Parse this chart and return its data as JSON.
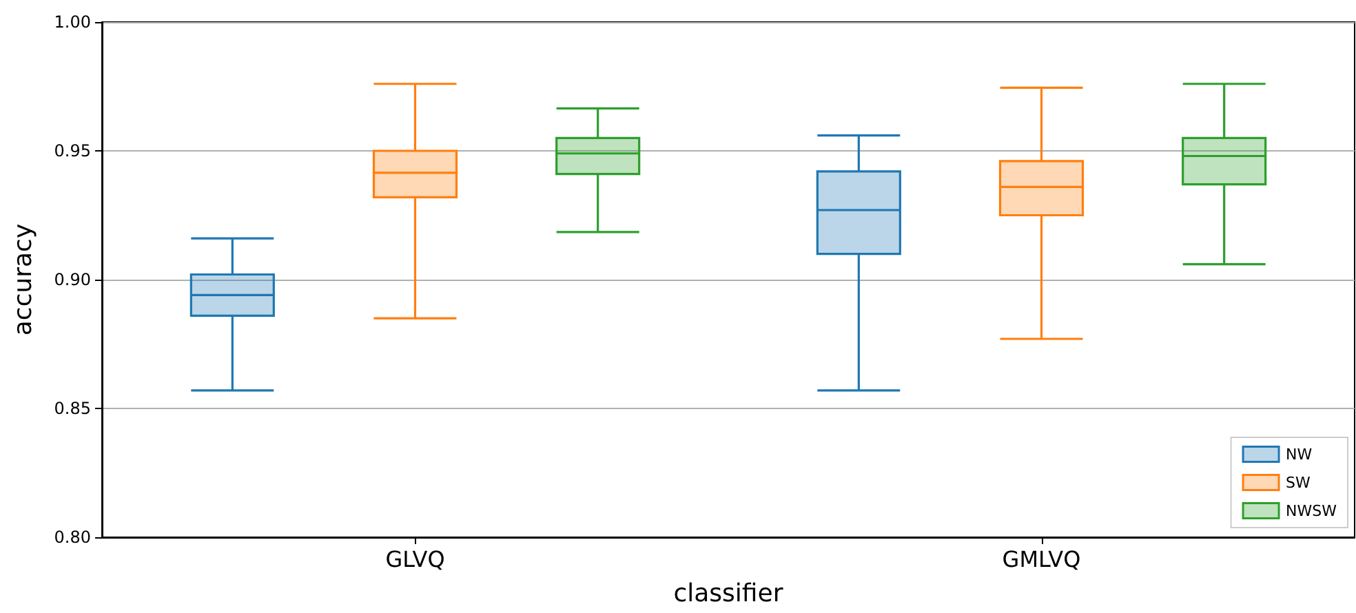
{
  "chart_data": {
    "type": "box",
    "xlabel": "classifier",
    "ylabel": "accuracy",
    "categories": [
      "GLVQ",
      "GMLVQ"
    ],
    "ylim": [
      0.8,
      1.0
    ],
    "yticks": [
      {
        "value": 0.8,
        "label": "0.80"
      },
      {
        "value": 0.85,
        "label": "0.85"
      },
      {
        "value": 0.9,
        "label": "0.90"
      },
      {
        "value": 0.95,
        "label": "0.95"
      },
      {
        "value": 1.0,
        "label": "1.00"
      }
    ],
    "grid": "y",
    "legend": "bottom right",
    "series": [
      {
        "name": "NW",
        "color": "#1f77b4",
        "boxes": [
          {
            "low": 0.857,
            "q1": 0.886,
            "median": 0.894,
            "q3": 0.902,
            "high": 0.916
          },
          {
            "low": 0.857,
            "q1": 0.91,
            "median": 0.927,
            "q3": 0.942,
            "high": 0.956
          }
        ]
      },
      {
        "name": "SW",
        "color": "#ff7f0e",
        "boxes": [
          {
            "low": 0.885,
            "q1": 0.932,
            "median": 0.9415,
            "q3": 0.95,
            "high": 0.976
          },
          {
            "low": 0.877,
            "q1": 0.925,
            "median": 0.936,
            "q3": 0.946,
            "high": 0.9745
          }
        ]
      },
      {
        "name": "NWSW",
        "color": "#2ca02c",
        "boxes": [
          {
            "low": 0.9185,
            "q1": 0.941,
            "median": 0.949,
            "q3": 0.955,
            "high": 0.9665
          },
          {
            "low": 0.906,
            "q1": 0.937,
            "median": 0.948,
            "q3": 0.955,
            "high": 0.976
          }
        ]
      }
    ]
  }
}
